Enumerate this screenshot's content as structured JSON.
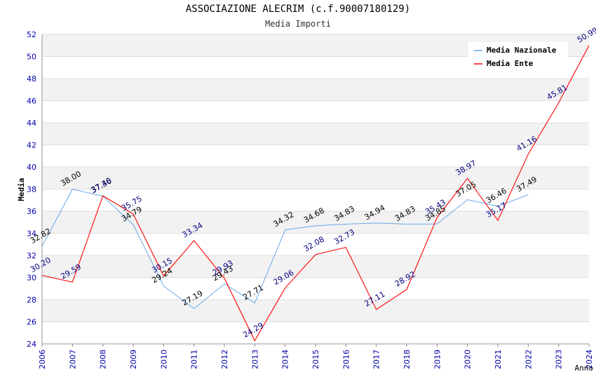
{
  "chart_data": {
    "type": "line",
    "title": "ASSOCIAZIONE ALECRIM (c.f.90007180129)",
    "subtitle": "Media Importi",
    "xlabel": "Anno",
    "ylabel": "Media",
    "ylim": [
      24,
      52
    ],
    "yticks": [
      "24",
      "26",
      "28",
      "30",
      "32",
      "34",
      "36",
      "38",
      "40",
      "42",
      "44",
      "46",
      "48",
      "50",
      "52"
    ],
    "categories": [
      "2006",
      "2007",
      "2008",
      "2009",
      "2010",
      "2011",
      "2012",
      "2013",
      "2014",
      "2015",
      "2016",
      "2017",
      "2018",
      "2019",
      "2020",
      "2021",
      "2022",
      "2023",
      "2024"
    ],
    "grid": true,
    "legend_position": "top-right",
    "series": [
      {
        "name": "Media Nazionale",
        "color": "#6aa8e8",
        "values": [
          32.82,
          38.0,
          37.36,
          34.79,
          29.24,
          27.19,
          29.43,
          27.71,
          34.32,
          34.68,
          34.83,
          34.94,
          34.83,
          34.85,
          37.05,
          36.46,
          37.49,
          null,
          null
        ],
        "labels": [
          "32.82",
          "38.00",
          "37.36",
          "34.79",
          "29.24",
          "27.19",
          "29.43",
          "27.71",
          "34.32",
          "34.68",
          "34.83",
          "34.94",
          "34.83",
          "34.85",
          "37.05",
          "36.46",
          "37.49",
          null,
          null
        ]
      },
      {
        "name": "Media Ente",
        "color": "#ff0000",
        "values": [
          30.2,
          29.59,
          37.4,
          35.75,
          30.15,
          33.34,
          29.93,
          24.29,
          29.06,
          32.08,
          32.73,
          27.11,
          28.92,
          35.43,
          38.97,
          35.17,
          41.16,
          45.81,
          50.99
        ],
        "labels": [
          "30.20",
          "29.59",
          "37.40",
          "35.75",
          "30.15",
          "33.34",
          "29.93",
          "24.29",
          "29.06",
          "32.08",
          "32.73",
          "27.11",
          "28.92",
          "35.43",
          "38.97",
          "35.17",
          "41.16",
          "45.81",
          "50.99"
        ]
      }
    ]
  }
}
